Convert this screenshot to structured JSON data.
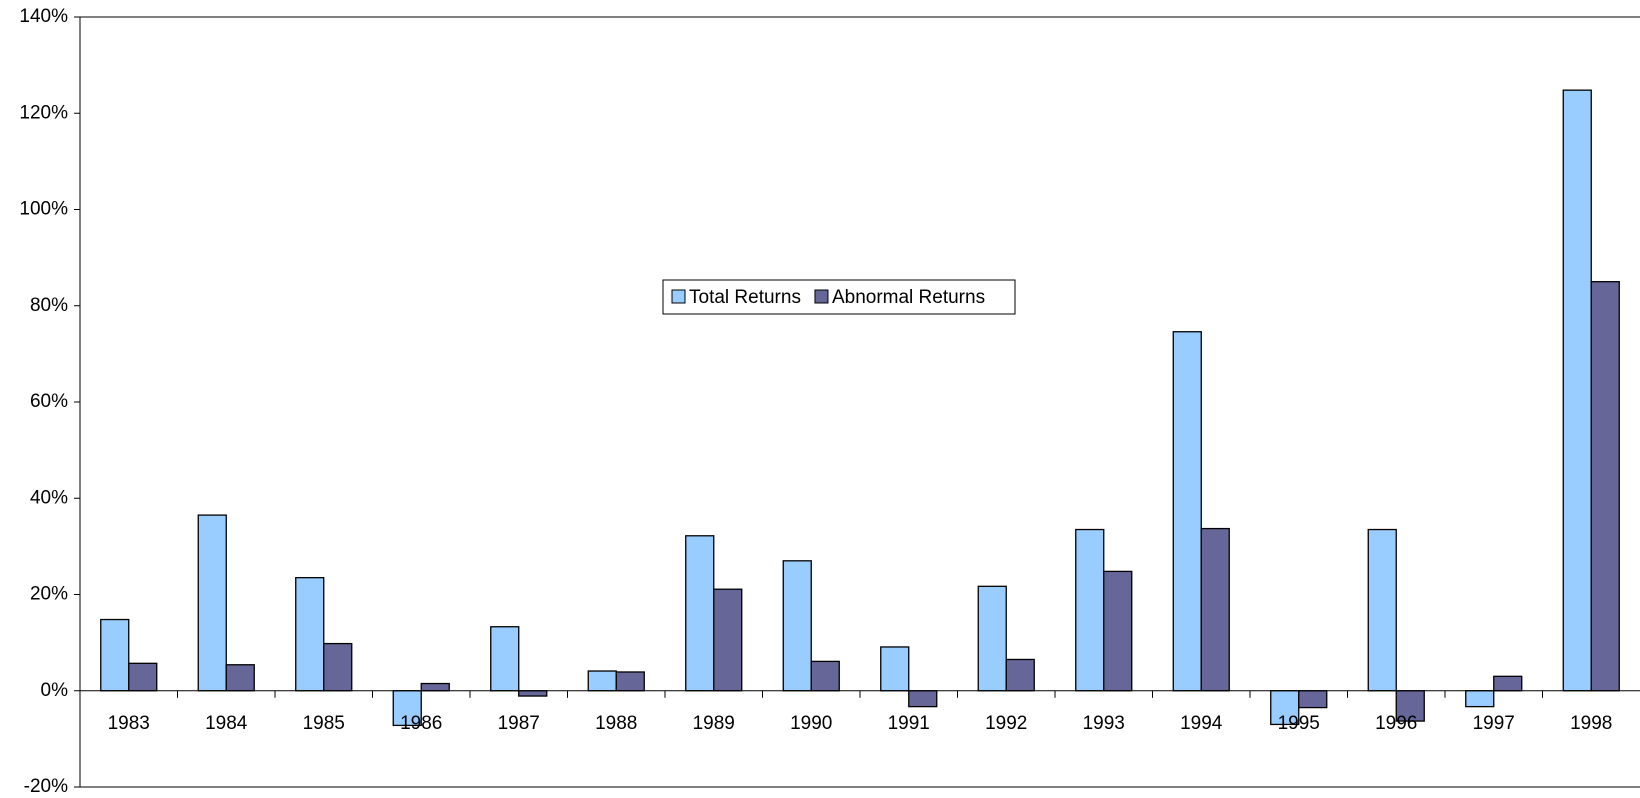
{
  "chart_data": {
    "type": "bar",
    "categories": [
      "1983",
      "1984",
      "1985",
      "1986",
      "1987",
      "1988",
      "1989",
      "1990",
      "1991",
      "1992",
      "1993",
      "1994",
      "1995",
      "1996",
      "1997",
      "1998"
    ],
    "series": [
      {
        "name": "Total Returns",
        "color": "#99ccff",
        "values": [
          14.8,
          36.5,
          23.5,
          -7.2,
          13.3,
          4.1,
          32.2,
          27,
          9.1,
          21.7,
          33.5,
          74.6,
          -7,
          33.5,
          -3.3,
          124.8
        ]
      },
      {
        "name": "Abnormal Returns",
        "color": "#666699",
        "values": [
          5.7,
          5.4,
          9.8,
          1.5,
          -1.1,
          3.9,
          21.1,
          6.1,
          -3.3,
          6.5,
          24.8,
          33.7,
          -3.5,
          -6.3,
          3,
          85
        ]
      }
    ],
    "ylim": [
      -20,
      140
    ],
    "yticks": [
      {
        "value": -20,
        "label": "-20%"
      },
      {
        "value": 0,
        "label": "0%"
      },
      {
        "value": 20,
        "label": "20%"
      },
      {
        "value": 40,
        "label": "40%"
      },
      {
        "value": 60,
        "label": "60%"
      },
      {
        "value": 80,
        "label": "80%"
      },
      {
        "value": 100,
        "label": "100%"
      },
      {
        "value": 120,
        "label": "120%"
      },
      {
        "value": 140,
        "label": "140%"
      }
    ],
    "grid": false
  }
}
